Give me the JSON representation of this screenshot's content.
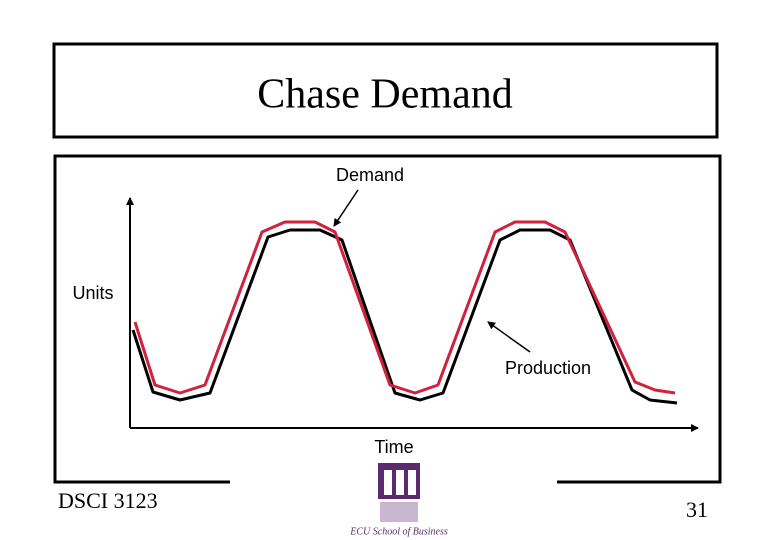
{
  "title": "Chase Demand",
  "labels": {
    "demand": "Demand",
    "units": "Units",
    "production": "Production",
    "time": "Time"
  },
  "footer": {
    "course": "DSCI 3123",
    "page": "31",
    "logo": "ECU School of Business"
  }
}
